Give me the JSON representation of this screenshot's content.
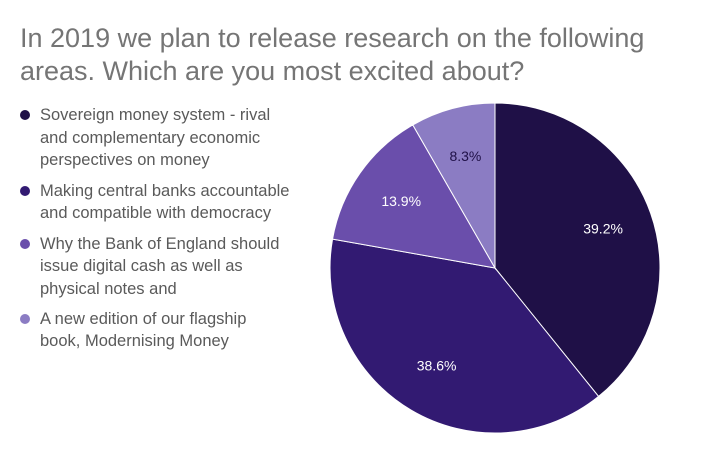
{
  "chart_data": {
    "type": "pie",
    "title": "In 2019 we plan to release research on the following areas. Which are you most excited about?",
    "legend_position": "left",
    "slices": [
      {
        "label": "Sovereign money system - rival and complementary economic perspectives on money",
        "value": 39.2,
        "value_label": "39.2%",
        "color": "#1f1047"
      },
      {
        "label": "Making central banks accountable and compatible with democracy",
        "value": 38.6,
        "value_label": "38.6%",
        "color": "#321a72"
      },
      {
        "label": "Why the Bank of England should issue digital cash as well as physical notes and",
        "value": 13.9,
        "value_label": "13.9%",
        "color": "#6a4eab"
      },
      {
        "label": "A new edition of our flagship book, Modernising Money",
        "value": 8.3,
        "value_label": "8.3%",
        "color": "#8b7cc3"
      }
    ]
  }
}
